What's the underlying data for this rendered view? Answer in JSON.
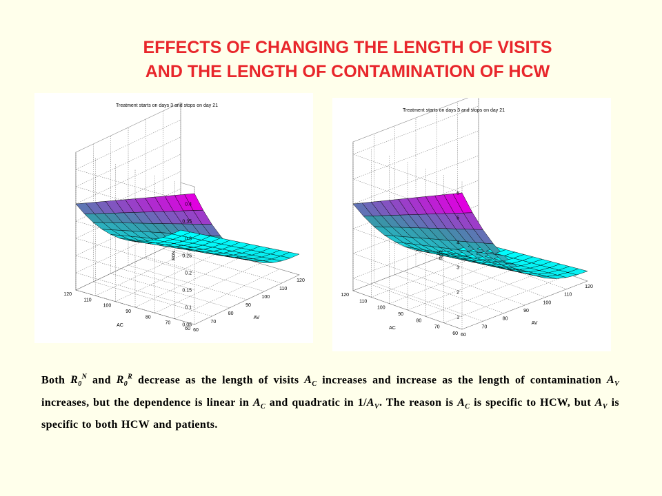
{
  "slide": {
    "title_line1": "EFFECTS OF CHANGING THE LENGTH OF VISITS",
    "title_line2": "AND THE LENGTH OF CONTAMINATION OF HCW"
  },
  "caption": {
    "both": "Both ",
    "R": "R",
    "sub0": "0",
    "supN": "N",
    "and": " and ",
    "supR": "R",
    "text1": " decrease as the length of visits ",
    "A": "A",
    "subC": "C",
    "subV": "V",
    "text2": " increases and increase as the length of contamination ",
    "text3": " increases, but the dependence is linear in ",
    "text4": " and quadratic in 1/",
    "text5": ". The reason is ",
    "text6": " is specific to HCW, but ",
    "text7": " is specific to both HCW and patients."
  },
  "colors": {
    "background": "#FFFFEB",
    "title": "#E8262B",
    "surface_high": "#E000E0",
    "surface_mid": "#3A95A8",
    "surface_low": "#00FFFF",
    "grid": "#666666"
  },
  "chart_data": [
    {
      "type": "surface3d",
      "title": "Treatment starts on days 3 and stops on day 21",
      "xlabel": "AV",
      "ylabel": "AC",
      "zlabel": "R0N",
      "x_ticks": [
        "60",
        "70",
        "80",
        "90",
        "100",
        "110",
        "120"
      ],
      "y_ticks": [
        "60",
        "70",
        "80",
        "90",
        "100",
        "110",
        "120"
      ],
      "z_ticks": [
        "0.05",
        "0.1",
        "0.15",
        "0.2",
        "0.25",
        "0.3",
        "0.35",
        "0.4"
      ],
      "xlim": [
        60,
        120
      ],
      "ylim": [
        60,
        120
      ],
      "zlim": [
        0.05,
        0.45
      ],
      "colormap": "cool",
      "grid": true,
      "surface_model": {
        "z_at_av_min_ac_min": 0.43,
        "z_at_av_max_ac_min": 0.11,
        "z_at_av_min_ac_max": 0.3,
        "z_at_av_max_ac_max": 0.08
      }
    },
    {
      "type": "surface3d",
      "title": "Treatment starts on days 3 and stops on day 21",
      "xlabel": "AV",
      "ylabel": "AC",
      "zlabel": "R0R",
      "x_ticks": [
        "60",
        "70",
        "80",
        "90",
        "100",
        "110",
        "120"
      ],
      "y_ticks": [
        "60",
        "70",
        "80",
        "90",
        "100",
        "110",
        "120"
      ],
      "z_ticks": [
        "1",
        "2",
        "3",
        "4",
        "5",
        "6"
      ],
      "xlim": [
        60,
        120
      ],
      "ylim": [
        60,
        120
      ],
      "zlim": [
        0.5,
        6.5
      ],
      "colormap": "cool",
      "grid": true,
      "surface_model": {
        "z_at_av_min_ac_min": 6.0,
        "z_at_av_max_ac_min": 0.9,
        "z_at_av_min_ac_max": 4.0,
        "z_at_av_max_ac_max": 0.5
      }
    }
  ]
}
